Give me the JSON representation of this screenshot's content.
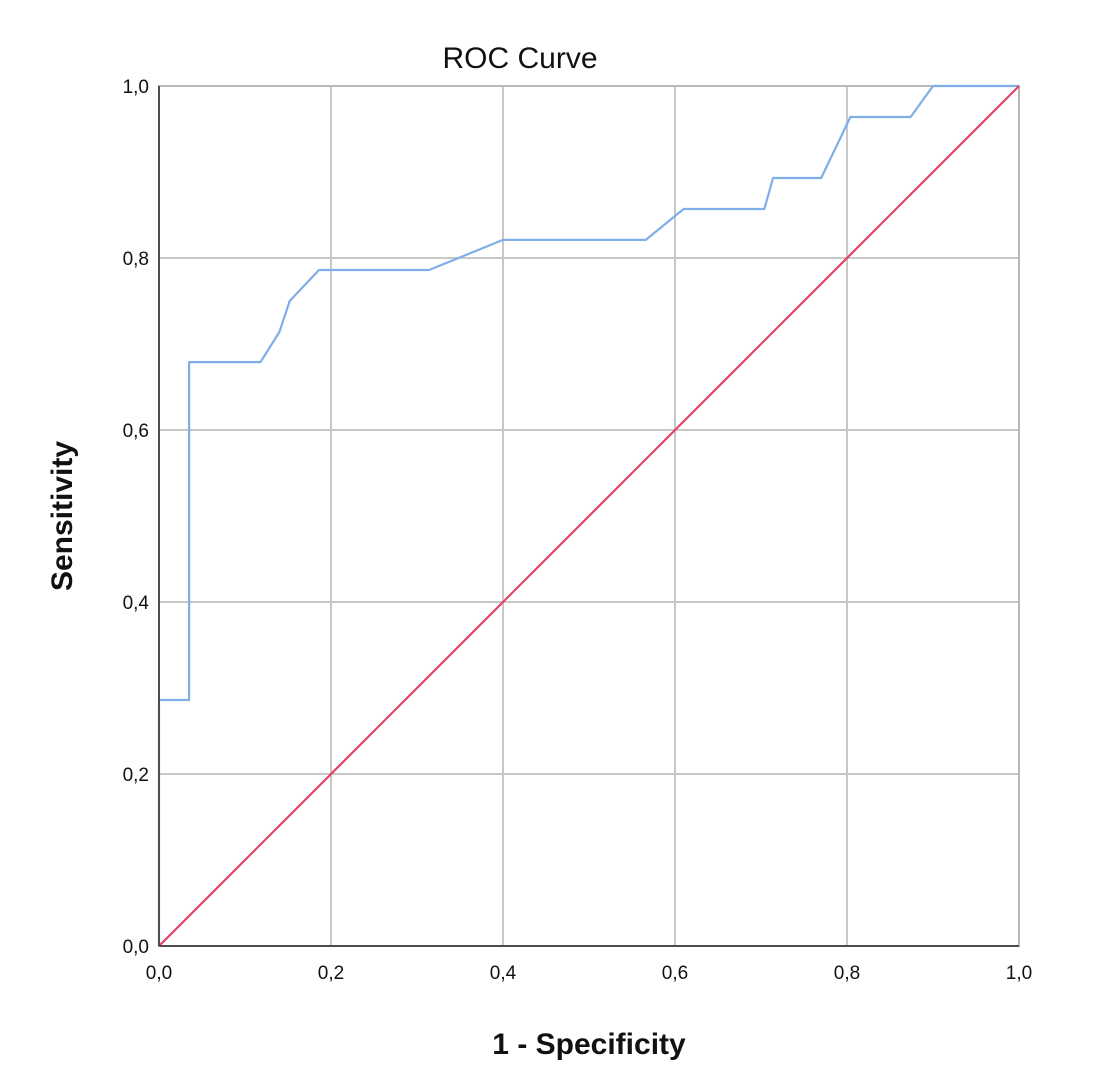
{
  "chart_data": {
    "type": "line",
    "title": "ROC Curve",
    "xlabel": "1 - Specificity",
    "ylabel": "Sensitivity",
    "xlim": [
      0,
      1
    ],
    "ylim": [
      0,
      1
    ],
    "xticks": [
      "0,0",
      "0,2",
      "0,4",
      "0,6",
      "0,8",
      "1,0"
    ],
    "yticks": [
      "0,0",
      "0,2",
      "0,4",
      "0,6",
      "0,8",
      "1,0"
    ],
    "grid": true,
    "series": [
      {
        "color": "#7faee8",
        "x": [
          0.0,
          0.0,
          0.035,
          0.035,
          0.118,
          0.14,
          0.152,
          0.186,
          0.314,
          0.4,
          0.566,
          0.61,
          0.704,
          0.714,
          0.77,
          0.804,
          0.874,
          0.9,
          1.0
        ],
        "y": [
          0.0,
          0.286,
          0.286,
          0.679,
          0.679,
          0.714,
          0.75,
          0.786,
          0.786,
          0.821,
          0.821,
          0.857,
          0.857,
          0.893,
          0.893,
          0.964,
          0.964,
          1.0,
          1.0
        ]
      },
      {
        "color": "#e0446a",
        "x": [
          0.0,
          1.0
        ],
        "y": [
          0.0,
          1.0
        ]
      }
    ]
  }
}
